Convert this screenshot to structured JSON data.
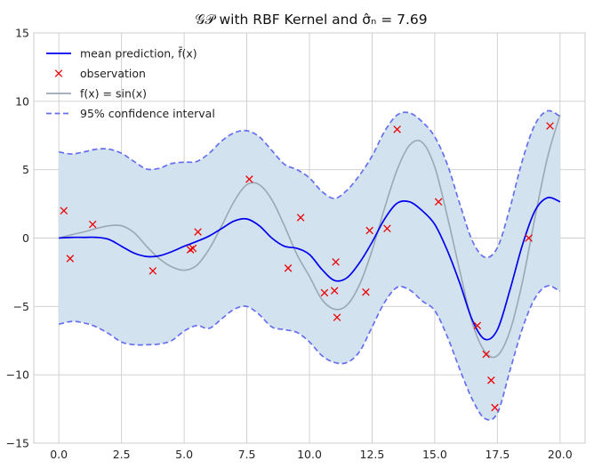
{
  "chart_data": {
    "type": "line",
    "title": "𝒢𝒫 with RBF Kernel and σ̂ₙ = 7.69",
    "xlabel": "",
    "ylabel": "",
    "xlim": [
      -1,
      21
    ],
    "ylim": [
      -15,
      15
    ],
    "grid": true,
    "legend_position": "top-left",
    "x_ticks": [
      "0.0",
      "2.5",
      "5.0",
      "7.5",
      "10.0",
      "12.5",
      "15.0",
      "17.5",
      "20.0"
    ],
    "x_tick_values": [
      0,
      2.5,
      5,
      7.5,
      10,
      12.5,
      15,
      17.5,
      20
    ],
    "y_ticks": [
      "−15",
      "−10",
      "−5",
      "0",
      "5",
      "10",
      "15"
    ],
    "y_tick_values": [
      -15,
      -10,
      -5,
      0,
      5,
      10,
      15
    ],
    "legend": [
      {
        "label": "mean prediction, f̄(x)",
        "style": "line",
        "color": "#0000ee"
      },
      {
        "label": "observation",
        "style": "marker",
        "color": "#ee0000"
      },
      {
        "label": "f(x) = sin(x)",
        "style": "line",
        "color": "#9aa8b4"
      },
      {
        "label": "95% confidence interval",
        "style": "dashed",
        "color": "#6670ee"
      }
    ],
    "colors": {
      "mean": "#0000ee",
      "true_function": "#9aa8b4",
      "ci_line": "#6670ee",
      "ci_fill": "#d2e2ee",
      "observation": "#ee0000",
      "grid": "#cccccc"
    },
    "series": [
      {
        "name": "mean prediction, f̄(x)",
        "x": [
          0,
          0.5,
          1,
          1.5,
          2,
          2.5,
          3,
          3.5,
          4,
          4.5,
          5,
          5.5,
          6,
          6.5,
          7,
          7.5,
          8,
          8.5,
          9,
          9.5,
          10,
          10.5,
          11,
          11.5,
          12,
          12.5,
          13,
          13.5,
          14,
          14.5,
          15,
          15.5,
          16,
          16.5,
          17,
          17.5,
          18,
          18.5,
          19,
          19.5,
          20
        ],
        "y": [
          0,
          0.05,
          0.05,
          0.05,
          -0.1,
          -0.6,
          -1.1,
          -1.35,
          -1.3,
          -1,
          -0.6,
          -0.25,
          0.15,
          0.7,
          1.25,
          1.4,
          0.9,
          0,
          -0.6,
          -0.75,
          -1.2,
          -2.3,
          -3.1,
          -2.9,
          -1.8,
          -0.3,
          1.4,
          2.55,
          2.65,
          2,
          1,
          -0.9,
          -3.3,
          -6,
          -7.4,
          -6.7,
          -3.8,
          -0.5,
          2,
          2.95,
          2.65
        ]
      },
      {
        "name": "f(x) = sin(x)",
        "x": [
          0,
          0.5,
          1,
          1.5,
          2,
          2.5,
          3,
          3.5,
          4,
          4.5,
          5,
          5.5,
          6,
          6.5,
          7,
          7.5,
          8,
          8.5,
          9,
          9.5,
          10,
          10.5,
          11,
          11.5,
          12,
          12.5,
          13,
          13.5,
          14,
          14.5,
          15,
          15.5,
          16,
          16.5,
          17,
          17.5,
          18,
          18.5,
          19,
          19.5,
          20
        ],
        "y": [
          0,
          0.24,
          0.45,
          0.7,
          0.9,
          0.9,
          0.4,
          -0.6,
          -1.5,
          -2.1,
          -2.35,
          -2,
          -0.8,
          0.9,
          2.7,
          3.9,
          3.9,
          2.8,
          0.9,
          -1.2,
          -2.8,
          -4.5,
          -5.2,
          -4.9,
          -3.4,
          -0.9,
          2.2,
          5,
          6.8,
          7,
          5.2,
          1.6,
          -2.4,
          -6.2,
          -8.3,
          -8.6,
          -6.8,
          -3.2,
          1.5,
          5.9,
          9
        ]
      },
      {
        "name": "95% confidence interval (upper)",
        "x": [
          0,
          0.5,
          1,
          1.5,
          2,
          2.5,
          3,
          3.5,
          4,
          4.5,
          5,
          5.5,
          6,
          6.5,
          7,
          7.5,
          8,
          8.5,
          9,
          9.5,
          10,
          10.5,
          11,
          11.5,
          12,
          12.5,
          13,
          13.5,
          14,
          14.5,
          15,
          15.5,
          16,
          16.5,
          17,
          17.5,
          18,
          18.5,
          19,
          19.5,
          20
        ],
        "y": [
          6.3,
          6.15,
          6.3,
          6.5,
          6.5,
          6.2,
          5.6,
          5.05,
          5.1,
          5.45,
          5.55,
          5.6,
          6.2,
          7.1,
          7.7,
          7.85,
          7.4,
          6.4,
          5.4,
          5,
          4.4,
          3.4,
          2.9,
          3.5,
          4.6,
          6,
          7.8,
          9,
          9.15,
          8.5,
          7.4,
          5.4,
          2.5,
          -0.2,
          -1.4,
          -0.7,
          2.2,
          5.7,
          8.3,
          9.3,
          8.9
        ]
      },
      {
        "name": "95% confidence interval (lower)",
        "x": [
          0,
          0.5,
          1,
          1.5,
          2,
          2.5,
          3,
          3.5,
          4,
          4.5,
          5,
          5.5,
          6,
          6.5,
          7,
          7.5,
          8,
          8.5,
          9,
          9.5,
          10,
          10.5,
          11,
          11.5,
          12,
          12.5,
          13,
          13.5,
          14,
          14.5,
          15,
          15.5,
          16,
          16.5,
          17,
          17.5,
          18,
          18.5,
          19,
          19.5,
          20
        ],
        "y": [
          -6.3,
          -6.1,
          -6.2,
          -6.5,
          -7,
          -7.6,
          -7.8,
          -7.8,
          -7.75,
          -7.5,
          -6.8,
          -6.4,
          -6.6,
          -5.9,
          -5.2,
          -5,
          -5.6,
          -6.5,
          -6.7,
          -6.9,
          -7.6,
          -8.6,
          -9.1,
          -9.1,
          -8.3,
          -6.5,
          -4.7,
          -3.6,
          -3.8,
          -4.6,
          -5.3,
          -7.2,
          -9.6,
          -11.8,
          -13.2,
          -12.8,
          -9.7,
          -6.6,
          -4.4,
          -3.5,
          -3.9
        ]
      }
    ],
    "observations": {
      "x": [
        0.2,
        0.45,
        1.35,
        3.75,
        5.25,
        5.35,
        5.55,
        7.6,
        9.15,
        9.65,
        10.6,
        11,
        11.05,
        11.1,
        12.25,
        12.4,
        13.1,
        13.5,
        15.15,
        16.7,
        17.05,
        17.25,
        17.4,
        18.75,
        19.6
      ],
      "y": [
        2,
        -1.5,
        1,
        -2.4,
        -0.85,
        -0.75,
        0.45,
        4.3,
        -2.2,
        1.5,
        -4,
        -3.85,
        -1.75,
        -5.8,
        -3.95,
        0.55,
        0.7,
        7.95,
        2.65,
        -6.4,
        -8.5,
        -10.4,
        -12.4,
        0,
        8.2
      ]
    }
  }
}
